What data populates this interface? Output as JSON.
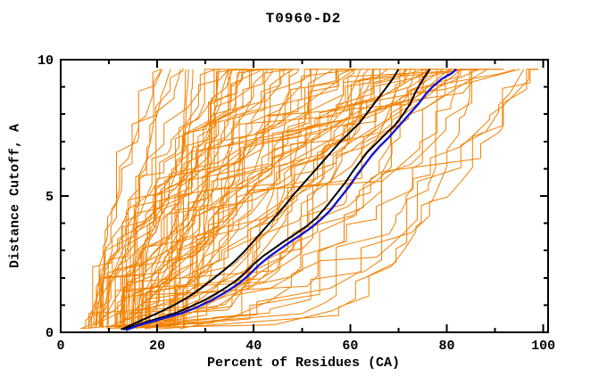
{
  "window": {
    "background": "#ffffff"
  },
  "chart_data": {
    "type": "line",
    "title": "T0960-D2",
    "xlabel": "Percent of Residues (CA)",
    "ylabel": "Distance Cutoff, A",
    "xlim": [
      0,
      101
    ],
    "ylim": [
      0,
      10
    ],
    "x_major_ticks": [
      0,
      20,
      40,
      60,
      80,
      100
    ],
    "x_minor_step": 10,
    "y_major_ticks": [
      0,
      5,
      10
    ],
    "y_minor_step": 1,
    "grid": false,
    "legend_position": "none",
    "ticks_inward_mirrored": true,
    "colors": {
      "ensemble": "#f28000",
      "frame": "#000000",
      "text": "#000000",
      "background": "#ffffff"
    },
    "series": [
      {
        "name": "highlighted-model-black-1",
        "color": "#000000",
        "width": 2,
        "points": [
          [
            12.5,
            0.1
          ],
          [
            15,
            0.3
          ],
          [
            17.5,
            0.5
          ],
          [
            20,
            0.7
          ],
          [
            23,
            0.95
          ],
          [
            26,
            1.25
          ],
          [
            29,
            1.6
          ],
          [
            31.5,
            1.95
          ],
          [
            34,
            2.3
          ],
          [
            36,
            2.6
          ],
          [
            38,
            2.95
          ],
          [
            40,
            3.35
          ],
          [
            42,
            3.75
          ],
          [
            44,
            4.15
          ],
          [
            46,
            4.55
          ],
          [
            48,
            5.0
          ],
          [
            50,
            5.4
          ],
          [
            52,
            5.8
          ],
          [
            54,
            6.2
          ],
          [
            56,
            6.6
          ],
          [
            58,
            7.0
          ],
          [
            60,
            7.35
          ],
          [
            62,
            7.7
          ],
          [
            63.5,
            8.05
          ],
          [
            65,
            8.4
          ],
          [
            66.5,
            8.75
          ],
          [
            68,
            9.1
          ],
          [
            69,
            9.35
          ],
          [
            70,
            9.65
          ]
        ]
      },
      {
        "name": "highlighted-model-black-2",
        "color": "#000000",
        "width": 2,
        "points": [
          [
            13,
            0.1
          ],
          [
            15.5,
            0.25
          ],
          [
            18,
            0.4
          ],
          [
            21,
            0.55
          ],
          [
            24,
            0.72
          ],
          [
            27,
            0.95
          ],
          [
            30,
            1.2
          ],
          [
            33,
            1.5
          ],
          [
            36,
            1.85
          ],
          [
            38,
            2.15
          ],
          [
            40,
            2.5
          ],
          [
            42,
            2.8
          ],
          [
            44,
            3.05
          ],
          [
            46,
            3.3
          ],
          [
            49,
            3.65
          ],
          [
            51,
            3.9
          ],
          [
            53,
            4.2
          ],
          [
            55,
            4.6
          ],
          [
            57,
            5.05
          ],
          [
            59,
            5.5
          ],
          [
            60.5,
            5.9
          ],
          [
            62,
            6.25
          ],
          [
            63.5,
            6.6
          ],
          [
            65.5,
            6.95
          ],
          [
            67.5,
            7.3
          ],
          [
            69.5,
            7.65
          ],
          [
            71,
            8.0
          ],
          [
            72.5,
            8.4
          ],
          [
            73.5,
            8.8
          ],
          [
            74.5,
            9.1
          ],
          [
            75.5,
            9.4
          ],
          [
            76.5,
            9.65
          ]
        ]
      },
      {
        "name": "highlighted-model-blue",
        "color": "#1515cf",
        "width": 2.4,
        "points": [
          [
            13.5,
            0.08
          ],
          [
            16,
            0.25
          ],
          [
            19,
            0.4
          ],
          [
            22,
            0.55
          ],
          [
            25,
            0.7
          ],
          [
            28,
            0.9
          ],
          [
            31,
            1.15
          ],
          [
            34,
            1.45
          ],
          [
            37,
            1.8
          ],
          [
            39,
            2.1
          ],
          [
            41,
            2.45
          ],
          [
            43,
            2.75
          ],
          [
            45,
            3.0
          ],
          [
            47,
            3.25
          ],
          [
            50,
            3.6
          ],
          [
            52,
            3.85
          ],
          [
            54,
            4.15
          ],
          [
            56,
            4.5
          ],
          [
            58,
            4.95
          ],
          [
            60,
            5.4
          ],
          [
            61.5,
            5.8
          ],
          [
            63,
            6.15
          ],
          [
            64.5,
            6.5
          ],
          [
            66,
            6.8
          ],
          [
            68,
            7.15
          ],
          [
            70,
            7.55
          ],
          [
            72,
            7.95
          ],
          [
            74,
            8.35
          ],
          [
            75.5,
            8.7
          ],
          [
            77,
            9.0
          ],
          [
            79,
            9.3
          ],
          [
            81,
            9.5
          ],
          [
            82,
            9.65
          ]
        ]
      }
    ],
    "ensemble": {
      "name": "server-model-curves",
      "count": 88,
      "seed": 1337,
      "start_pct_range": [
        4,
        26
      ],
      "end_pct_range": [
        21,
        99
      ],
      "gamma_range": [
        0.12,
        2.4
      ],
      "dist_start": 0.12,
      "dist_end": 9.65,
      "vertical_step_probability": 0.45
    }
  }
}
